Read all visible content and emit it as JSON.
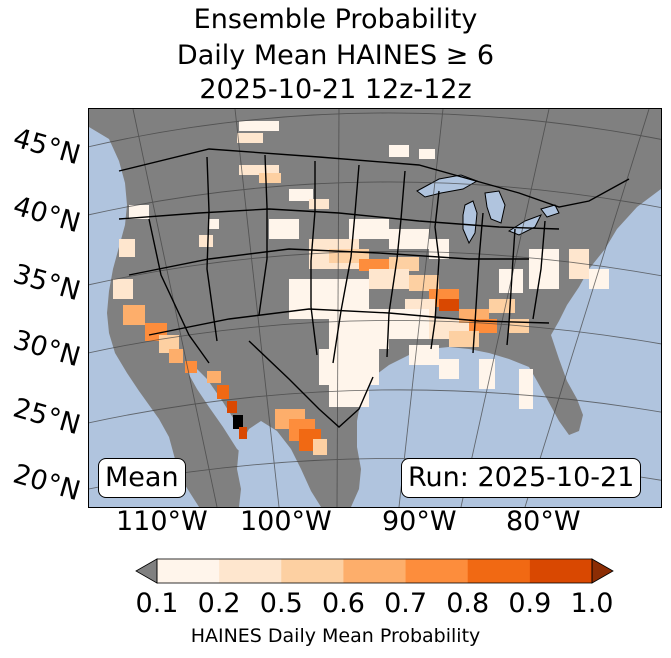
{
  "title": {
    "line1": "Ensemble Probability",
    "line2": "Daily Mean HAINES ≥ 6",
    "line3": "2025-10-21 12z-12z"
  },
  "map": {
    "ocean_color": "#b0c4de",
    "land_nodata_color": "#808080",
    "lat_labels": [
      "45°N",
      "40°N",
      "35°N",
      "30°N",
      "25°N",
      "20°N"
    ],
    "lon_labels": [
      "110°W",
      "100°W",
      "90°W",
      "80°W"
    ],
    "stat_box": "Mean",
    "run_box": "Run: 2025-10-21"
  },
  "colorbar": {
    "ticks": [
      "0.1",
      "0.2",
      "0.5",
      "0.6",
      "0.7",
      "0.8",
      "0.9",
      "1.0"
    ],
    "colors": [
      "#fff5eb",
      "#fee6ce",
      "#fdd0a2",
      "#fdae6b",
      "#fd8d3c",
      "#f16913",
      "#d94801"
    ],
    "under_color": "#808080",
    "over_color": "#8c2d04",
    "label": "HAINES Daily Mean Probability"
  }
}
